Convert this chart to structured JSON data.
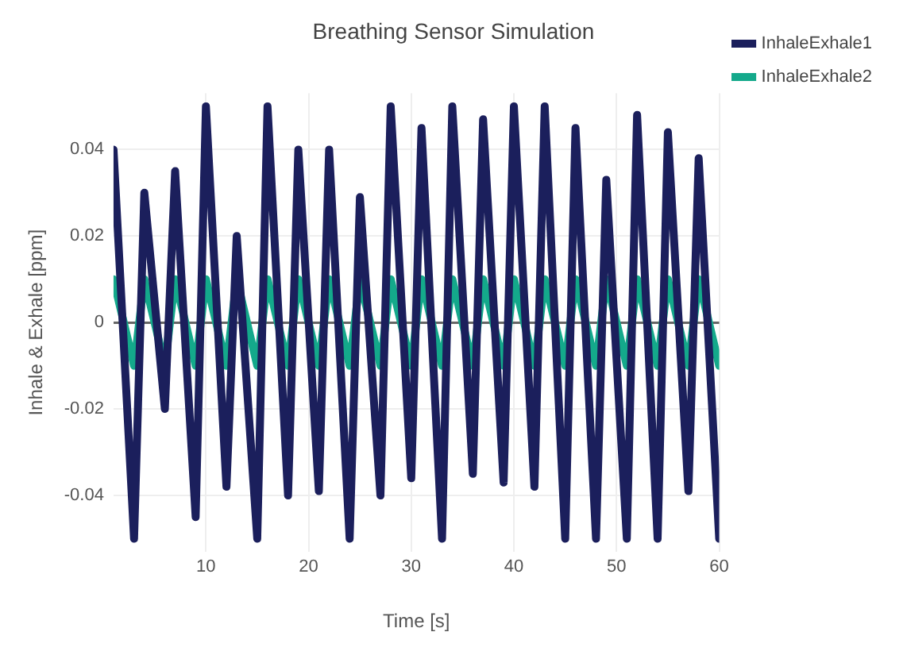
{
  "chart_data": {
    "type": "line",
    "title": "Breathing Sensor Simulation",
    "xlabel": "Time [s]",
    "ylabel": "Inhale & Exhale [ppm]",
    "series": [
      {
        "name": "InhaleExhale1",
        "color": "#1b1f5c",
        "x": [
          1,
          3,
          4,
          6,
          7,
          9,
          10,
          12,
          13,
          15,
          16,
          18,
          19,
          21,
          22,
          24,
          25,
          27,
          28,
          30,
          31,
          33,
          34,
          36,
          37,
          39,
          40,
          42,
          43,
          45,
          46,
          48,
          49,
          51,
          52,
          54,
          55,
          57,
          58,
          60
        ],
        "values": [
          0.04,
          -0.05,
          0.03,
          -0.02,
          0.035,
          -0.045,
          0.05,
          -0.038,
          0.02,
          -0.05,
          0.05,
          -0.04,
          0.04,
          -0.039,
          0.04,
          -0.05,
          0.029,
          -0.04,
          0.05,
          -0.036,
          0.045,
          -0.05,
          0.05,
          -0.035,
          0.047,
          -0.037,
          0.05,
          -0.038,
          0.05,
          -0.05,
          0.045,
          -0.05,
          0.033,
          -0.05,
          0.048,
          -0.05,
          0.044,
          -0.039,
          0.038,
          -0.05
        ]
      },
      {
        "name": "InhaleExhale2",
        "color": "#14a98b",
        "x": [
          1,
          3,
          4,
          6,
          7,
          9,
          10,
          12,
          13,
          15,
          16,
          18,
          19,
          21,
          22,
          24,
          25,
          27,
          28,
          30,
          31,
          33,
          34,
          36,
          37,
          39,
          40,
          42,
          43,
          45,
          46,
          48,
          49,
          51,
          52,
          54,
          55,
          57,
          58,
          60
        ],
        "values": [
          0.01,
          -0.01,
          0.01,
          -0.01,
          0.01,
          -0.01,
          0.01,
          -0.01,
          0.01,
          -0.01,
          0.01,
          -0.01,
          0.01,
          -0.01,
          0.01,
          -0.01,
          0.01,
          -0.01,
          0.01,
          -0.01,
          0.01,
          -0.01,
          0.01,
          -0.01,
          0.01,
          -0.01,
          0.01,
          -0.01,
          0.01,
          -0.01,
          0.01,
          -0.01,
          0.01,
          -0.01,
          0.01,
          -0.01,
          0.01,
          -0.01,
          0.01,
          -0.01
        ]
      }
    ],
    "xlim": [
      1,
      60
    ],
    "xticks": [
      10,
      20,
      30,
      40,
      50,
      60
    ],
    "ylim": [
      -0.053,
      0.053
    ],
    "yticks": [
      -0.04,
      -0.02,
      0,
      0.02,
      0.04
    ],
    "grid": true,
    "legend": "top right",
    "marker": "none",
    "line_style": "solid"
  }
}
